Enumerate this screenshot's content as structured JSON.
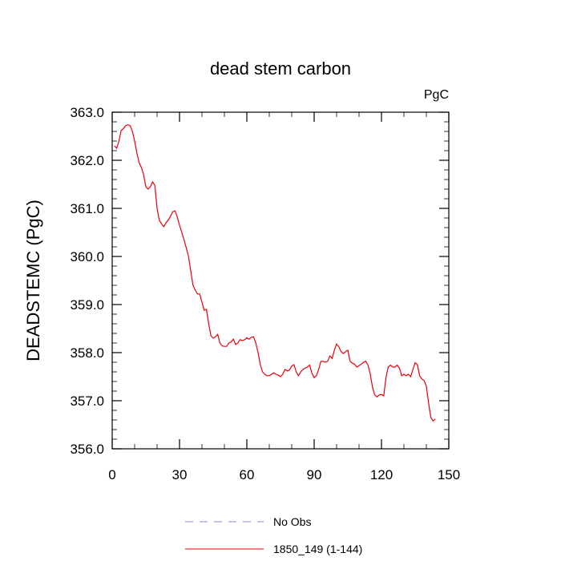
{
  "chart_data": {
    "type": "line",
    "title": "dead stem carbon",
    "units_label": "PgC",
    "ylabel": "DEADSTEMC  (PgC)",
    "xlabel": "",
    "xlim": [
      0,
      150
    ],
    "ylim": [
      356.0,
      363.0
    ],
    "x_ticks": [
      0,
      30,
      60,
      90,
      120,
      150
    ],
    "x_tick_labels": [
      "0",
      "30",
      "60",
      "90",
      "120",
      "150"
    ],
    "y_ticks": [
      356.0,
      357.0,
      358.0,
      359.0,
      360.0,
      361.0,
      362.0,
      363.0
    ],
    "y_tick_labels": [
      "356.0",
      "357.0",
      "358.0",
      "359.0",
      "360.0",
      "361.0",
      "362.0",
      "363.0"
    ],
    "grid": false,
    "legend_position": "bottom",
    "series": [
      {
        "name": "No Obs",
        "color": "#8c8cd9",
        "dash": true,
        "values": []
      },
      {
        "name": "1850_149 (1-144)",
        "color": "#e8000b",
        "dash": false,
        "x": [
          1,
          2,
          3,
          4,
          5,
          6,
          7,
          8,
          9,
          10,
          11,
          12,
          13,
          14,
          15,
          16,
          17,
          18,
          19,
          20,
          21,
          22,
          23,
          24,
          25,
          26,
          27,
          28,
          29,
          30,
          31,
          32,
          33,
          34,
          35,
          36,
          37,
          38,
          39,
          40,
          41,
          42,
          43,
          44,
          45,
          46,
          47,
          48,
          49,
          50,
          51,
          52,
          53,
          54,
          55,
          56,
          57,
          58,
          59,
          60,
          61,
          62,
          63,
          64,
          65,
          66,
          67,
          68,
          69,
          70,
          71,
          72,
          73,
          74,
          75,
          76,
          77,
          78,
          79,
          80,
          81,
          82,
          83,
          84,
          85,
          86,
          87,
          88,
          89,
          90,
          91,
          92,
          93,
          94,
          95,
          96,
          97,
          98,
          99,
          100,
          101,
          102,
          103,
          104,
          105,
          106,
          107,
          108,
          109,
          110,
          111,
          112,
          113,
          114,
          115,
          116,
          117,
          118,
          119,
          120,
          121,
          122,
          123,
          124,
          125,
          126,
          127,
          128,
          129,
          130,
          131,
          132,
          133,
          134,
          135,
          136,
          137,
          138,
          139,
          140,
          141,
          142,
          143,
          144
        ],
        "values": [
          362.3,
          362.25,
          362.4,
          362.62,
          362.66,
          362.72,
          362.74,
          362.72,
          362.6,
          362.4,
          362.15,
          361.95,
          361.85,
          361.7,
          361.45,
          361.4,
          361.45,
          361.55,
          361.48,
          361.0,
          360.75,
          360.68,
          360.62,
          360.7,
          360.76,
          360.84,
          360.93,
          360.95,
          360.82,
          360.65,
          360.5,
          360.35,
          360.18,
          360.0,
          359.7,
          359.4,
          359.3,
          359.22,
          359.22,
          359.05,
          358.88,
          358.9,
          358.6,
          358.35,
          358.3,
          358.33,
          358.38,
          358.2,
          358.14,
          358.13,
          358.13,
          358.2,
          358.22,
          358.28,
          358.17,
          358.2,
          358.27,
          358.25,
          358.27,
          358.31,
          358.28,
          358.32,
          358.33,
          358.2,
          358.0,
          357.75,
          357.6,
          357.55,
          357.52,
          357.52,
          357.55,
          357.58,
          357.55,
          357.53,
          357.5,
          357.55,
          357.65,
          357.62,
          357.64,
          357.72,
          357.75,
          357.6,
          357.52,
          357.6,
          357.65,
          357.68,
          357.7,
          357.74,
          357.57,
          357.48,
          357.52,
          357.65,
          357.82,
          357.82,
          357.8,
          357.82,
          357.93,
          357.88,
          358.05,
          358.18,
          358.12,
          358.02,
          357.98,
          358.02,
          358.05,
          357.82,
          357.78,
          357.76,
          357.7,
          357.73,
          357.76,
          357.8,
          357.82,
          357.74,
          357.55,
          357.28,
          357.12,
          357.08,
          357.12,
          357.13,
          357.1,
          357.48,
          357.7,
          357.74,
          357.7,
          357.7,
          357.74,
          357.68,
          357.52,
          357.55,
          357.52,
          357.55,
          357.5,
          357.65,
          357.79,
          357.75,
          357.52,
          357.45,
          357.42,
          357.3,
          356.95,
          356.65,
          356.58,
          356.62
        ]
      }
    ]
  }
}
